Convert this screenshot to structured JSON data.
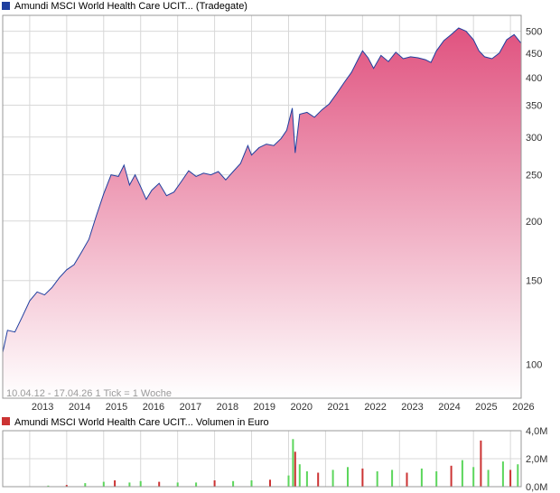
{
  "colors": {
    "price_line": "#1f3f9f",
    "area_top": "#e0527f",
    "area_bottom": "#ffffff",
    "volume_up": "#5cd65c",
    "volume_down": "#cc3333",
    "grid": "#d8d8d8",
    "price_legend_swatch": "#1f3f9f",
    "volume_legend_swatch": "#cc3333"
  },
  "chart_data": [
    {
      "type": "area",
      "title": "Amundi MSCI World Health Care UCIT... (Tradegate)",
      "info_text": "10.04.12 - 17.04.26   1 Tick = 1 Woche",
      "y_scale": "log",
      "ylim": [
        85,
        540
      ],
      "y_ticks": [
        100,
        150,
        200,
        250,
        300,
        350,
        400,
        450,
        500
      ],
      "x_range": [
        2012.27,
        2026.29
      ],
      "x_ticks": [
        "2013",
        "2014",
        "2015",
        "2016",
        "2017",
        "2018",
        "2019",
        "2020",
        "2021",
        "2022",
        "2023",
        "2024",
        "2025",
        "2026"
      ],
      "grid": true,
      "legend": "top-left",
      "points": [
        [
          2012.27,
          106
        ],
        [
          2012.4,
          118
        ],
        [
          2012.6,
          117
        ],
        [
          2012.8,
          126
        ],
        [
          2013.0,
          136
        ],
        [
          2013.2,
          142
        ],
        [
          2013.4,
          140
        ],
        [
          2013.6,
          145
        ],
        [
          2013.8,
          152
        ],
        [
          2014.0,
          158
        ],
        [
          2014.2,
          162
        ],
        [
          2014.4,
          172
        ],
        [
          2014.6,
          183
        ],
        [
          2014.8,
          205
        ],
        [
          2015.0,
          228
        ],
        [
          2015.2,
          250
        ],
        [
          2015.4,
          248
        ],
        [
          2015.55,
          262
        ],
        [
          2015.7,
          238
        ],
        [
          2015.85,
          250
        ],
        [
          2016.0,
          236
        ],
        [
          2016.15,
          222
        ],
        [
          2016.3,
          232
        ],
        [
          2016.5,
          240
        ],
        [
          2016.7,
          226
        ],
        [
          2016.9,
          230
        ],
        [
          2017.1,
          242
        ],
        [
          2017.3,
          255
        ],
        [
          2017.5,
          248
        ],
        [
          2017.7,
          252
        ],
        [
          2017.9,
          250
        ],
        [
          2018.1,
          254
        ],
        [
          2018.3,
          244
        ],
        [
          2018.5,
          254
        ],
        [
          2018.7,
          264
        ],
        [
          2018.9,
          288
        ],
        [
          2019.0,
          275
        ],
        [
          2019.2,
          285
        ],
        [
          2019.4,
          290
        ],
        [
          2019.6,
          288
        ],
        [
          2019.8,
          298
        ],
        [
          2019.95,
          310
        ],
        [
          2020.1,
          345
        ],
        [
          2020.18,
          278
        ],
        [
          2020.3,
          335
        ],
        [
          2020.5,
          338
        ],
        [
          2020.7,
          330
        ],
        [
          2020.9,
          342
        ],
        [
          2021.1,
          352
        ],
        [
          2021.3,
          370
        ],
        [
          2021.5,
          390
        ],
        [
          2021.7,
          410
        ],
        [
          2021.9,
          440
        ],
        [
          2022.0,
          455
        ],
        [
          2022.15,
          440
        ],
        [
          2022.3,
          418
        ],
        [
          2022.5,
          445
        ],
        [
          2022.7,
          432
        ],
        [
          2022.9,
          452
        ],
        [
          2023.1,
          438
        ],
        [
          2023.3,
          442
        ],
        [
          2023.5,
          440
        ],
        [
          2023.7,
          436
        ],
        [
          2023.85,
          430
        ],
        [
          2024.0,
          455
        ],
        [
          2024.2,
          478
        ],
        [
          2024.4,
          492
        ],
        [
          2024.6,
          508
        ],
        [
          2024.8,
          500
        ],
        [
          2025.0,
          480
        ],
        [
          2025.15,
          455
        ],
        [
          2025.3,
          442
        ],
        [
          2025.5,
          438
        ],
        [
          2025.7,
          450
        ],
        [
          2025.9,
          480
        ],
        [
          2026.1,
          492
        ],
        [
          2026.29,
          472
        ]
      ]
    },
    {
      "type": "bar",
      "title": "Amundi MSCI World Health Care UCIT... Volumen in Euro",
      "ylim": [
        0,
        4000000
      ],
      "y_tick_labels": [
        "0,0M",
        "2,0M",
        "4,0M"
      ],
      "x_range": [
        2012.27,
        2026.29
      ],
      "legend": "top-left",
      "bars": [
        [
          2013.5,
          0.08
        ],
        [
          2014.0,
          0.12
        ],
        [
          2014.5,
          0.25
        ],
        [
          2015.0,
          0.35
        ],
        [
          2015.3,
          0.45
        ],
        [
          2015.7,
          0.3
        ],
        [
          2016.0,
          0.4
        ],
        [
          2016.5,
          0.35
        ],
        [
          2017.0,
          0.3
        ],
        [
          2017.5,
          0.3
        ],
        [
          2018.0,
          0.45
        ],
        [
          2018.5,
          0.4
        ],
        [
          2019.0,
          0.45
        ],
        [
          2019.5,
          0.5
        ],
        [
          2020.0,
          0.8
        ],
        [
          2020.12,
          3.4
        ],
        [
          2020.18,
          2.5
        ],
        [
          2020.3,
          1.6
        ],
        [
          2020.5,
          1.1
        ],
        [
          2020.8,
          1.0
        ],
        [
          2021.2,
          1.2
        ],
        [
          2021.6,
          1.4
        ],
        [
          2022.0,
          1.3
        ],
        [
          2022.4,
          1.1
        ],
        [
          2022.8,
          1.2
        ],
        [
          2023.2,
          1.0
        ],
        [
          2023.6,
          1.3
        ],
        [
          2024.0,
          1.1
        ],
        [
          2024.4,
          1.5
        ],
        [
          2024.7,
          1.9
        ],
        [
          2025.0,
          1.4
        ],
        [
          2025.2,
          3.3
        ],
        [
          2025.4,
          1.2
        ],
        [
          2025.8,
          1.8
        ],
        [
          2026.0,
          1.2
        ],
        [
          2026.2,
          1.6
        ]
      ]
    }
  ]
}
